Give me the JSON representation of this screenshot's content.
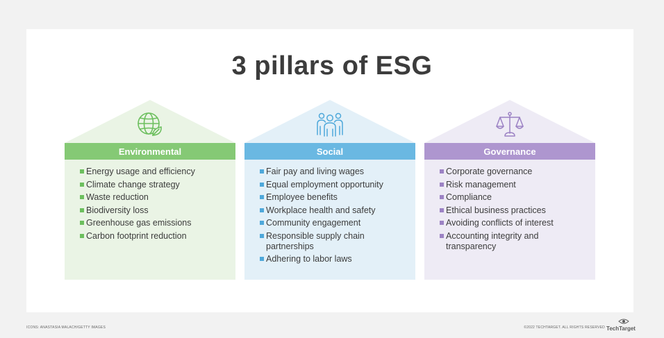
{
  "title": "3 pillars of ESG",
  "pillars": [
    {
      "name": "Environmental",
      "icon": "globe-leaf-icon",
      "colors": {
        "accent": "#85c975",
        "light": "#eaf4e5",
        "bullet": "#6cbf5e"
      },
      "items": [
        "Energy usage and efficiency",
        "Climate change strategy",
        "Waste reduction",
        "Biodiversity loss",
        "Greenhouse gas emissions",
        "Carbon footprint reduction"
      ]
    },
    {
      "name": "Social",
      "icon": "people-group-icon",
      "colors": {
        "accent": "#6ab8e2",
        "light": "#e3f0f8",
        "bullet": "#4ea8da"
      },
      "items": [
        "Fair pay and living wages",
        "Equal employment opportunity",
        "Employee benefits",
        "Workplace health and safety",
        "Community engagement",
        "Responsible supply chain partnerships",
        "Adhering to labor laws"
      ]
    },
    {
      "name": "Governance",
      "icon": "scales-icon",
      "colors": {
        "accent": "#ae96cf",
        "light": "#eeebf5",
        "bullet": "#9c82c4"
      },
      "items": [
        "Corporate governance",
        "Risk management",
        "Compliance",
        "Ethical business practices",
        "Avoiding conflicts of interest",
        "Accounting integrity and transparency"
      ]
    }
  ],
  "footer": {
    "credit": "ICONS: ANASTASIA MALACH/GETTY IMAGES",
    "copyright": "©2022 TECHTARGET. ALL RIGHTS RESERVED",
    "logo": "TechTarget"
  }
}
